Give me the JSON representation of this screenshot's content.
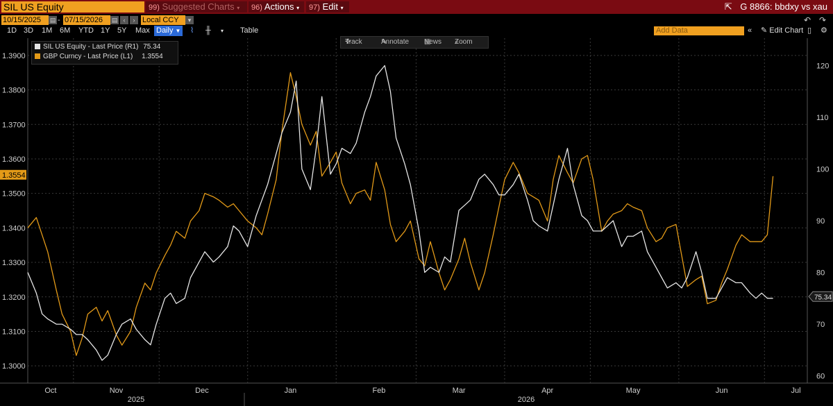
{
  "header": {
    "ticker": "SIL US Equity",
    "suggested": "Suggested Charts",
    "suggested_num": "99)",
    "actions": "Actions",
    "actions_num": "96)",
    "edit": "Edit",
    "edit_num": "97)",
    "chart_id": "G 8866: bbdxy vs xau"
  },
  "range": {
    "start": "10/15/2025",
    "end": "07/15/2026",
    "currency": "Local CCY"
  },
  "periods": [
    "1D",
    "3D",
    "1M",
    "6M",
    "YTD",
    "1Y",
    "5Y",
    "Max"
  ],
  "frequency": "Daily",
  "table_label": "Table",
  "add_data_placeholder": "Add Data",
  "edit_chart_label": "Edit Chart",
  "tools": {
    "track": "Track",
    "annotate": "Annotate",
    "news": "News",
    "zoom": "Zoom"
  },
  "legend": {
    "white_name": "SIL US Equity - Last Price (R1)",
    "white_value": "75.34",
    "orange_name": "GBP Curncy - Last Price (L1)",
    "orange_value": "1.3554"
  },
  "colors": {
    "white_series": "#e6e6e6",
    "orange_series": "#e39a18",
    "accent": "#f0a020",
    "header": "#7a0b12"
  },
  "chart_data": {
    "type": "line",
    "x_range": [
      "2025-10-15",
      "2026-07-15"
    ],
    "month_labels": [
      "Oct",
      "Nov",
      "Dec",
      "Jan",
      "Feb",
      "Mar",
      "Apr",
      "May",
      "Jun",
      "Jul"
    ],
    "year_labels": [
      "2025",
      "2026"
    ],
    "left_axis": {
      "ylim": [
        1.295,
        1.395
      ],
      "ticks": [
        "1.3000",
        "1.3100",
        "1.3200",
        "1.3300",
        "1.3400",
        "1.3500",
        "1.3600",
        "1.3700",
        "1.3800",
        "1.3900"
      ],
      "current": "1.3554"
    },
    "right_axis": {
      "ylim": [
        58.6,
        125.3
      ],
      "ticks": [
        "60",
        "70",
        "80",
        "90",
        "100",
        "110",
        "120"
      ],
      "current": "75.34"
    },
    "grid": true,
    "series": [
      {
        "name": "SIL US Equity - Last Price (R1)",
        "axis": "right",
        "x": [
          "2025-10-15",
          "2025-10-18",
          "2025-10-20",
          "2025-10-22",
          "2025-10-25",
          "2025-10-27",
          "2025-10-30",
          "2025-11-01",
          "2025-11-03",
          "2025-11-05",
          "2025-11-08",
          "2025-11-10",
          "2025-11-12",
          "2025-11-15",
          "2025-11-17",
          "2025-11-20",
          "2025-11-22",
          "2025-11-25",
          "2025-11-27",
          "2025-11-29",
          "2025-12-02",
          "2025-12-04",
          "2025-12-06",
          "2025-12-09",
          "2025-12-11",
          "2025-12-14",
          "2025-12-16",
          "2025-12-19",
          "2025-12-21",
          "2025-12-24",
          "2025-12-26",
          "2025-12-28",
          "2025-12-31",
          "2026-01-03",
          "2026-01-05",
          "2026-01-07",
          "2026-01-10",
          "2026-01-12",
          "2026-01-15",
          "2026-01-17",
          "2026-01-19",
          "2026-01-22",
          "2026-01-24",
          "2026-01-26",
          "2026-01-29",
          "2026-01-31",
          "2026-02-02",
          "2026-02-05",
          "2026-02-07",
          "2026-02-10",
          "2026-02-12",
          "2026-02-14",
          "2026-02-17",
          "2026-02-19",
          "2026-02-21",
          "2026-02-24",
          "2026-02-26",
          "2026-03-01",
          "2026-03-03",
          "2026-03-05",
          "2026-03-08",
          "2026-03-10",
          "2026-03-12",
          "2026-03-15",
          "2026-03-17",
          "2026-03-19",
          "2026-03-22",
          "2026-03-24",
          "2026-03-27",
          "2026-03-29",
          "2026-03-31",
          "2026-04-03",
          "2026-04-05",
          "2026-04-08",
          "2026-04-10",
          "2026-04-12",
          "2026-04-15",
          "2026-04-17",
          "2026-04-19",
          "2026-04-22",
          "2026-04-24",
          "2026-04-27",
          "2026-04-29",
          "2026-05-01",
          "2026-05-04",
          "2026-05-06",
          "2026-05-08",
          "2026-05-11",
          "2026-05-13",
          "2026-05-15",
          "2026-05-18",
          "2026-05-20",
          "2026-05-23",
          "2026-05-25",
          "2026-05-27",
          "2026-05-30",
          "2026-06-01",
          "2026-06-03",
          "2026-06-06",
          "2026-06-08",
          "2026-06-10",
          "2026-06-13",
          "2026-06-15",
          "2026-06-17",
          "2026-06-20",
          "2026-06-22",
          "2026-06-25",
          "2026-06-27",
          "2026-06-29",
          "2026-07-01",
          "2026-07-03"
        ],
        "values": [
          80,
          76,
          72,
          71,
          70,
          70,
          69,
          68,
          68,
          67,
          65,
          63,
          64,
          68,
          70,
          71,
          69,
          67,
          66,
          70,
          75,
          76,
          74,
          75,
          79,
          82,
          84,
          82,
          83,
          85,
          89,
          88,
          85,
          91,
          94,
          97,
          103,
          107,
          111,
          117,
          100,
          96,
          104,
          114,
          99,
          101,
          104,
          103,
          105,
          111,
          114,
          118,
          120,
          115,
          106,
          101,
          97,
          88,
          80,
          81,
          80,
          83,
          82,
          92,
          93,
          94,
          98,
          99,
          97,
          95,
          95,
          97,
          99,
          94,
          90,
          89,
          88,
          93,
          98,
          104,
          97,
          91,
          90,
          88,
          88,
          89,
          90,
          85,
          87,
          87,
          88,
          84,
          81,
          79,
          77,
          78,
          77,
          79,
          84,
          80,
          75,
          75,
          77,
          79,
          78,
          78,
          76,
          75,
          76,
          75,
          75
        ]
      },
      {
        "name": "GBP Curncy - Last Price (L1)",
        "axis": "left",
        "x": [
          "2025-10-15",
          "2025-10-18",
          "2025-10-20",
          "2025-10-22",
          "2025-10-25",
          "2025-10-27",
          "2025-10-30",
          "2025-11-01",
          "2025-11-03",
          "2025-11-05",
          "2025-11-08",
          "2025-11-10",
          "2025-11-12",
          "2025-11-15",
          "2025-11-17",
          "2025-11-20",
          "2025-11-22",
          "2025-11-25",
          "2025-11-27",
          "2025-11-29",
          "2025-12-02",
          "2025-12-04",
          "2025-12-06",
          "2025-12-09",
          "2025-12-11",
          "2025-12-14",
          "2025-12-16",
          "2025-12-19",
          "2025-12-21",
          "2025-12-24",
          "2025-12-26",
          "2025-12-28",
          "2025-12-31",
          "2026-01-03",
          "2026-01-05",
          "2026-01-07",
          "2026-01-10",
          "2026-01-12",
          "2026-01-15",
          "2026-01-17",
          "2026-01-19",
          "2026-01-22",
          "2026-01-24",
          "2026-01-26",
          "2026-01-29",
          "2026-01-31",
          "2026-02-02",
          "2026-02-05",
          "2026-02-07",
          "2026-02-10",
          "2026-02-12",
          "2026-02-14",
          "2026-02-17",
          "2026-02-19",
          "2026-02-21",
          "2026-02-24",
          "2026-02-26",
          "2026-03-01",
          "2026-03-03",
          "2026-03-05",
          "2026-03-08",
          "2026-03-10",
          "2026-03-12",
          "2026-03-15",
          "2026-03-17",
          "2026-03-19",
          "2026-03-22",
          "2026-03-24",
          "2026-03-27",
          "2026-03-29",
          "2026-03-31",
          "2026-04-03",
          "2026-04-05",
          "2026-04-08",
          "2026-04-10",
          "2026-04-12",
          "2026-04-15",
          "2026-04-17",
          "2026-04-19",
          "2026-04-22",
          "2026-04-24",
          "2026-04-27",
          "2026-04-29",
          "2026-05-01",
          "2026-05-04",
          "2026-05-06",
          "2026-05-08",
          "2026-05-11",
          "2026-05-13",
          "2026-05-15",
          "2026-05-18",
          "2026-05-20",
          "2026-05-23",
          "2026-05-25",
          "2026-05-27",
          "2026-05-30",
          "2026-06-01",
          "2026-06-03",
          "2026-06-06",
          "2026-06-08",
          "2026-06-10",
          "2026-06-13",
          "2026-06-15",
          "2026-06-17",
          "2026-06-20",
          "2026-06-22",
          "2026-06-25",
          "2026-06-27",
          "2026-06-29",
          "2026-07-01",
          "2026-07-03"
        ],
        "values": [
          1.34,
          1.343,
          1.338,
          1.333,
          1.322,
          1.315,
          1.31,
          1.303,
          1.308,
          1.315,
          1.317,
          1.313,
          1.316,
          1.309,
          1.306,
          1.31,
          1.317,
          1.324,
          1.322,
          1.327,
          1.332,
          1.335,
          1.339,
          1.337,
          1.342,
          1.345,
          1.35,
          1.349,
          1.348,
          1.346,
          1.347,
          1.345,
          1.342,
          1.34,
          1.338,
          1.344,
          1.354,
          1.368,
          1.385,
          1.378,
          1.37,
          1.364,
          1.368,
          1.355,
          1.359,
          1.362,
          1.353,
          1.347,
          1.35,
          1.351,
          1.348,
          1.359,
          1.351,
          1.341,
          1.336,
          1.339,
          1.342,
          1.331,
          1.329,
          1.336,
          1.327,
          1.322,
          1.325,
          1.331,
          1.337,
          1.33,
          1.322,
          1.327,
          1.338,
          1.346,
          1.354,
          1.359,
          1.356,
          1.35,
          1.349,
          1.348,
          1.342,
          1.354,
          1.361,
          1.356,
          1.353,
          1.36,
          1.361,
          1.354,
          1.339,
          1.342,
          1.344,
          1.345,
          1.347,
          1.346,
          1.345,
          1.34,
          1.336,
          1.337,
          1.34,
          1.341,
          1.332,
          1.323,
          1.325,
          1.326,
          1.318,
          1.319,
          1.324,
          1.328,
          1.335,
          1.338,
          1.336,
          1.336,
          1.336,
          1.338,
          1.355
        ]
      }
    ]
  }
}
